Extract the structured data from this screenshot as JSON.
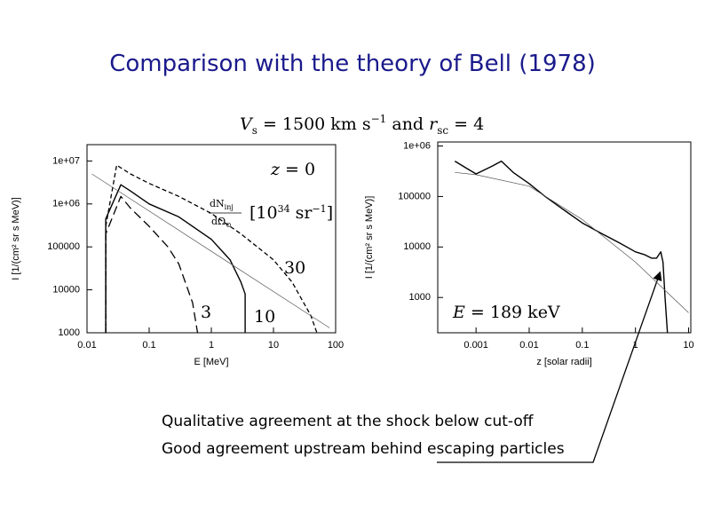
{
  "title": "Comparison with the theory of Bell (1978)",
  "header": {
    "parts": [
      "V",
      "s",
      " = 1500 km s",
      "−1",
      " and ",
      "r",
      "sc",
      " = 4"
    ]
  },
  "notes": [
    "Qualitative agreement at the shock below cut-off",
    "Good agreement upstream behind escaping particles"
  ],
  "chart_data": [
    {
      "type": "line",
      "xlog": true,
      "ylog": true,
      "xlabel": "E [MeV]",
      "ylabel": "I [1/(cm² sr s MeV)]",
      "xlim": [
        0.01,
        100
      ],
      "ylim": [
        1000,
        24000000
      ],
      "xticks": [
        0.01,
        0.1,
        1,
        10,
        100
      ],
      "yticks": [
        {
          "value": 10000000,
          "label": "1e+07"
        },
        {
          "value": 1000000,
          "label": "1e+06"
        },
        100000,
        10000,
        1000
      ],
      "annotations": {
        "z_label": [
          "z",
          " = 0"
        ],
        "unit_label": [
          "dN",
          "inj",
          "dΩ",
          "⊙",
          "[10",
          "34",
          " sr",
          "−1",
          "]"
        ]
      },
      "series": [
        {
          "name": "10",
          "color": "#000000",
          "line_style": "solid",
          "x": [
            0.02,
            0.02,
            0.035,
            0.05,
            0.1,
            0.3,
            1,
            2,
            3,
            3.5,
            3.5
          ],
          "values": [
            1000,
            450000,
            2800000,
            2000000,
            1000000,
            500000,
            150000,
            50000,
            15000,
            8000,
            1000
          ]
        },
        {
          "name": "30",
          "color": "#000000",
          "line_style": "dashed",
          "x": [
            0.02,
            0.02,
            0.03,
            0.05,
            0.1,
            0.3,
            1,
            3,
            10,
            20,
            40,
            50
          ],
          "values": [
            1000,
            300000,
            8000000,
            5000000,
            3000000,
            1500000,
            600000,
            200000,
            50000,
            15000,
            2500,
            1000
          ]
        },
        {
          "name": "3",
          "color": "#000000",
          "line_style": "long-dashed",
          "x": [
            0.02,
            0.02,
            0.035,
            0.05,
            0.1,
            0.2,
            0.3,
            0.5,
            0.6
          ],
          "values": [
            1000,
            200000,
            1500000,
            800000,
            300000,
            100000,
            40000,
            5000,
            1000
          ]
        },
        {
          "color": "#555555",
          "line_style": "thin",
          "x": [
            0.012,
            80
          ],
          "values": [
            5000000,
            1300
          ]
        }
      ]
    },
    {
      "type": "line",
      "xlog": true,
      "ylog": true,
      "xlabel": "z [solar radii]",
      "ylabel": "I [1/(cm² sr s MeV)]",
      "xlim": [
        0.00019,
        11
      ],
      "ylim": [
        200,
        1200000
      ],
      "xticks": [
        0.001,
        0.01,
        0.1,
        1,
        10
      ],
      "yticks": [
        {
          "value": 1000000,
          "label": "1e+06"
        },
        100000,
        10000,
        1000
      ],
      "annotations": {
        "energy_label": [
          "E",
          " = 189 keV"
        ]
      },
      "series": [
        {
          "color": "#000000",
          "line_style": "solid",
          "x": [
            0.0004,
            0.0007,
            0.001,
            0.002,
            0.003,
            0.005,
            0.01,
            0.02,
            0.05,
            0.1,
            0.2,
            0.5,
            1,
            1.5,
            2,
            2.5,
            3,
            3.3,
            3.6,
            4
          ],
          "values": [
            500000,
            350000,
            280000,
            400000,
            500000,
            300000,
            180000,
            100000,
            50000,
            30000,
            20000,
            12000,
            8000,
            7000,
            6000,
            6000,
            8000,
            5000,
            1000,
            200
          ]
        },
        {
          "color": "#555555",
          "line_style": "thin",
          "x": [
            0.0004,
            0.001,
            0.01,
            0.1,
            1,
            10
          ],
          "values": [
            300000,
            270000,
            160000,
            35000,
            5000,
            500
          ]
        }
      ]
    }
  ]
}
